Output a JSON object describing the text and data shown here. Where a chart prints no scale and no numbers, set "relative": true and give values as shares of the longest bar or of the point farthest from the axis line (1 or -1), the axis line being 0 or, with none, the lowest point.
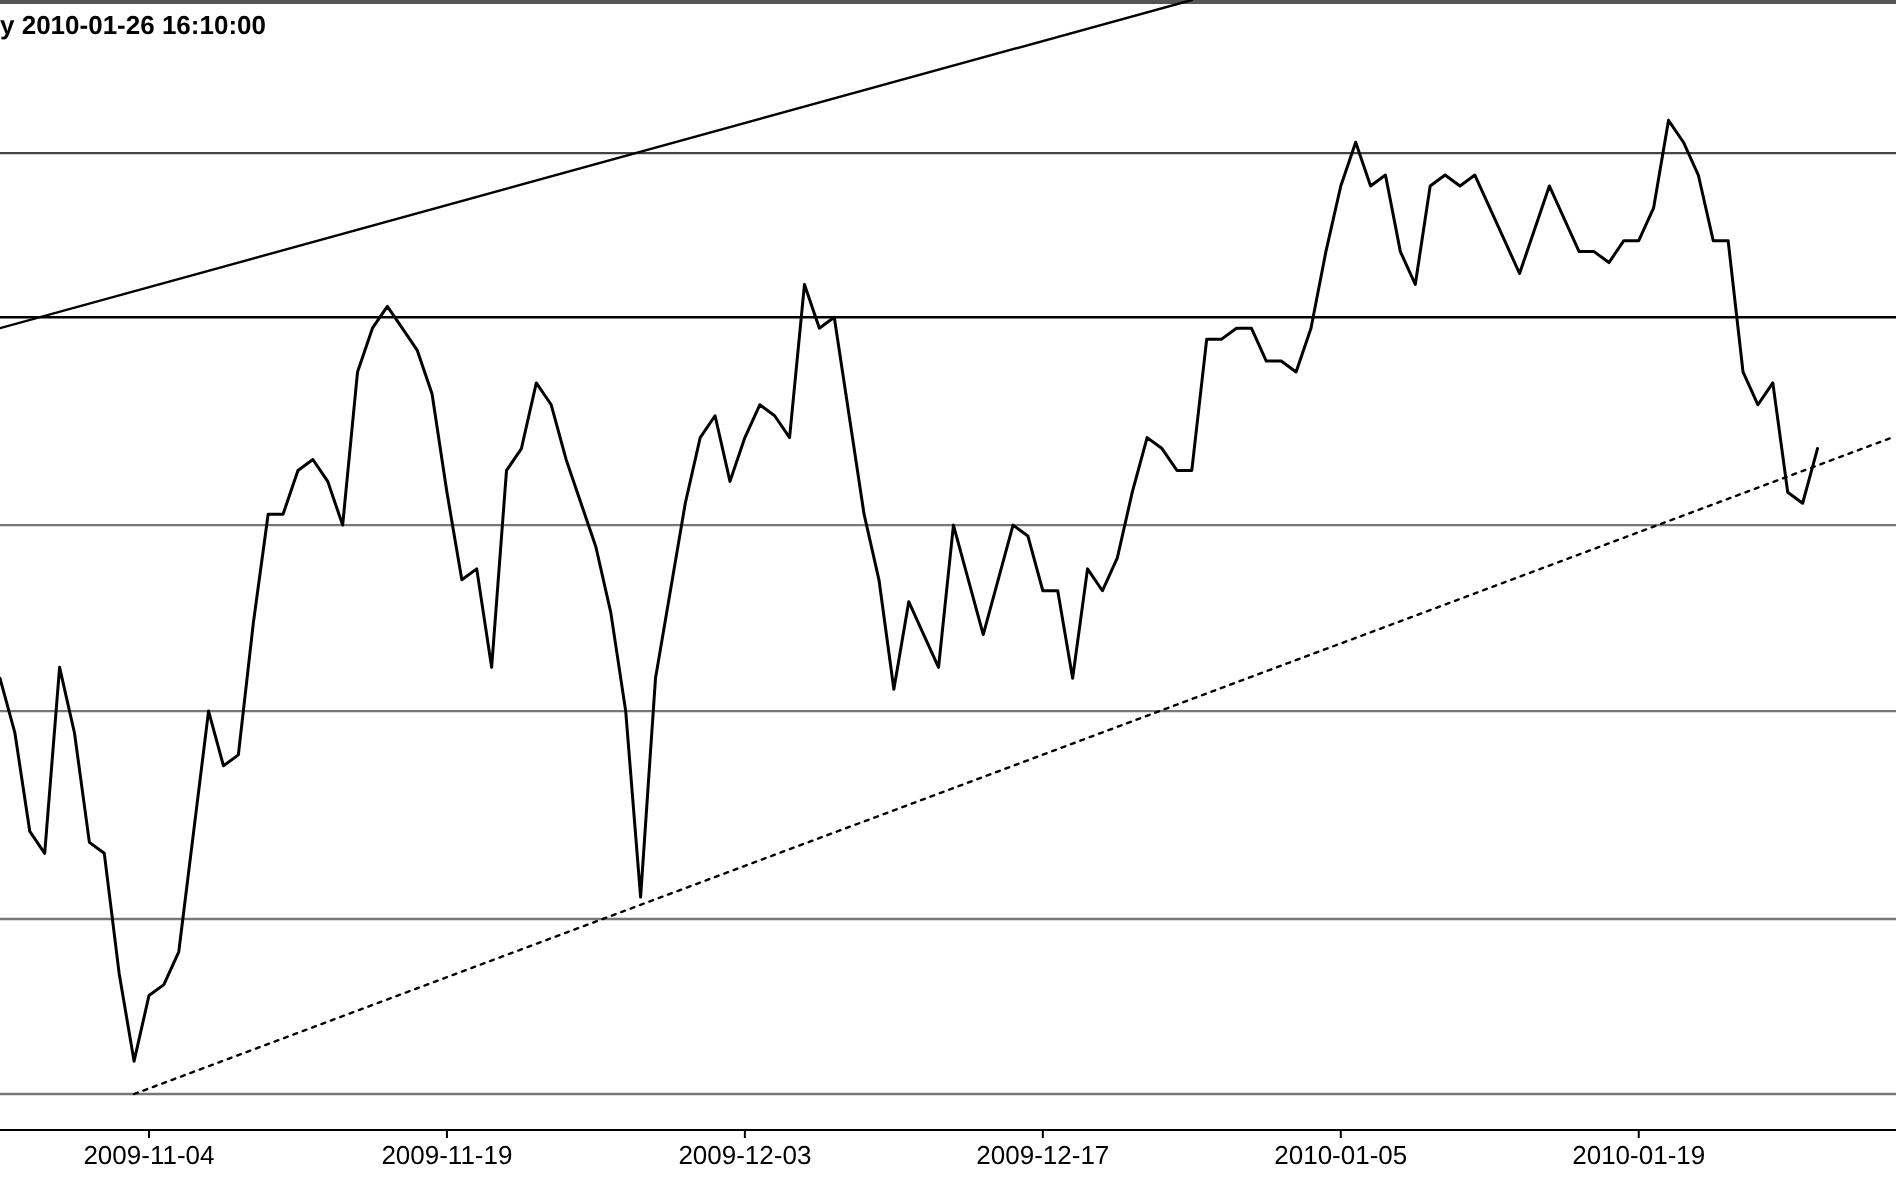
{
  "chart_data": {
    "type": "line",
    "title": "y 2010-01-26 16:10:00",
    "relative": true,
    "categories": [
      null,
      null,
      null,
      null,
      null,
      null,
      null,
      null,
      null,
      null,
      "2009-11-04",
      null,
      null,
      null,
      null,
      null,
      null,
      null,
      null,
      null,
      null,
      null,
      null,
      null,
      null,
      null,
      null,
      null,
      null,
      null,
      "2009-11-19",
      null,
      null,
      null,
      null,
      null,
      null,
      null,
      null,
      null,
      null,
      null,
      null,
      null,
      null,
      null,
      null,
      null,
      null,
      null,
      "2009-12-03",
      null,
      null,
      null,
      null,
      null,
      null,
      null,
      null,
      null,
      null,
      null,
      null,
      null,
      null,
      null,
      null,
      null,
      null,
      null,
      "2009-12-17",
      null,
      null,
      null,
      null,
      null,
      null,
      null,
      null,
      null,
      null,
      null,
      null,
      null,
      null,
      null,
      null,
      null,
      null,
      null,
      "2010-01-05",
      null,
      null,
      null,
      null,
      null,
      null,
      null,
      null,
      null,
      null,
      null,
      null,
      null,
      null,
      null,
      null,
      null,
      null,
      null,
      "2010-01-19",
      null,
      null,
      null,
      null,
      null,
      null,
      null,
      null,
      null,
      null,
      null,
      null,
      null,
      null,
      null,
      null,
      null
    ],
    "line_style": "solid",
    "series": [
      {
        "color": "#000000",
        "values": [
          0.38,
          0.33,
          0.24,
          0.22,
          0.39,
          0.33,
          0.23,
          0.22,
          0.11,
          0.03,
          0.09,
          0.1,
          0.13,
          0.24,
          0.35,
          0.3,
          0.31,
          0.43,
          0.53,
          0.53,
          0.57,
          0.58,
          0.56,
          0.52,
          0.66,
          0.7,
          0.72,
          0.7,
          0.68,
          0.64,
          0.55,
          0.47,
          0.48,
          0.39,
          0.57,
          0.59,
          0.65,
          0.63,
          0.58,
          0.54,
          0.5,
          0.44,
          0.35,
          0.18,
          0.38,
          0.46,
          0.54,
          0.6,
          0.62,
          0.56,
          0.6,
          0.63,
          0.62,
          0.6,
          0.74,
          0.7,
          0.71,
          0.62,
          0.53,
          0.47,
          0.37,
          0.45,
          0.42,
          0.39,
          0.52,
          0.47,
          0.42,
          0.47,
          0.52,
          0.51,
          0.46,
          0.46,
          0.38,
          0.48,
          0.46,
          0.49,
          0.55,
          0.6,
          0.59,
          0.57,
          0.57,
          0.69,
          0.69,
          0.7,
          0.7,
          0.67,
          0.67,
          0.66,
          0.7,
          0.77,
          0.83,
          0.87,
          0.83,
          0.84,
          0.77,
          0.74,
          0.83,
          0.84,
          0.83,
          0.84,
          0.81,
          0.78,
          0.75,
          0.79,
          0.83,
          0.8,
          0.77,
          0.77,
          0.76,
          0.78,
          0.78,
          0.81,
          0.89,
          0.87,
          0.84,
          0.78,
          0.78,
          0.66,
          0.63,
          0.65,
          0.55,
          0.54,
          0.59,
          null,
          null,
          null,
          null,
          null
        ]
      },
      {
        "color": "#000000",
        "values": [
          0.7,
          null,
          null,
          null,
          null,
          null,
          null,
          null,
          null,
          null,
          null,
          null,
          null,
          null,
          null,
          null,
          null,
          null,
          null,
          null,
          null,
          null,
          null,
          null,
          null,
          null,
          null,
          null,
          null,
          null,
          null,
          null,
          null,
          null,
          null,
          null,
          null,
          null,
          null,
          null,
          null,
          null,
          null,
          null,
          null,
          null,
          null,
          null,
          null,
          null,
          null,
          null,
          null,
          null,
          null,
          null,
          null,
          null,
          null,
          null,
          null,
          null,
          null,
          null,
          null,
          null,
          null,
          null,
          null,
          null,
          null,
          null,
          null,
          null,
          null,
          null,
          null,
          null,
          null,
          null,
          1,
          null,
          null,
          null,
          null,
          null,
          null,
          null,
          null,
          null,
          null,
          null,
          null,
          null,
          null,
          null,
          null,
          null,
          null,
          null,
          null,
          null,
          null,
          null,
          null,
          null,
          null,
          null,
          null,
          null,
          null,
          null,
          null,
          null,
          null,
          null,
          null,
          null,
          null,
          null,
          null,
          null,
          null,
          null,
          null,
          null,
          null,
          null
        ]
      },
      {
        "color": "#000000",
        "line_style": "dotted",
        "values": [
          null,
          null,
          null,
          null,
          null,
          null,
          null,
          null,
          null,
          0,
          null,
          null,
          null,
          null,
          null,
          null,
          null,
          null,
          null,
          null,
          null,
          null,
          null,
          null,
          null,
          null,
          null,
          null,
          null,
          null,
          null,
          null,
          null,
          null,
          null,
          null,
          null,
          null,
          null,
          null,
          null,
          null,
          null,
          null,
          null,
          null,
          null,
          null,
          null,
          null,
          null,
          null,
          null,
          null,
          null,
          null,
          null,
          null,
          null,
          null,
          null,
          null,
          null,
          null,
          null,
          null,
          null,
          null,
          null,
          null,
          null,
          null,
          null,
          null,
          null,
          null,
          null,
          null,
          null,
          null,
          null,
          null,
          null,
          null,
          null,
          null,
          null,
          null,
          null,
          null,
          null,
          null,
          null,
          null,
          null,
          null,
          null,
          null,
          null,
          null,
          null,
          null,
          null,
          null,
          null,
          null,
          null,
          null,
          null,
          null,
          null,
          null,
          null,
          null,
          null,
          null,
          null,
          null,
          null,
          null,
          null,
          null,
          null,
          null,
          null,
          null,
          null,
          0.6
        ]
      }
    ],
    "ref_lines": [
      {
        "axis": "y",
        "value": 0.86,
        "color": "#444444"
      },
      {
        "axis": "y",
        "value": 0.71,
        "color": "#000000"
      },
      {
        "axis": "y",
        "value": 0.52,
        "color": "#777777"
      },
      {
        "axis": "y",
        "value": 0.35,
        "color": "#777777"
      },
      {
        "axis": "y",
        "value": 0.16,
        "color": "#777777"
      },
      {
        "axis": "y",
        "value": 0,
        "color": "#777777"
      }
    ]
  }
}
